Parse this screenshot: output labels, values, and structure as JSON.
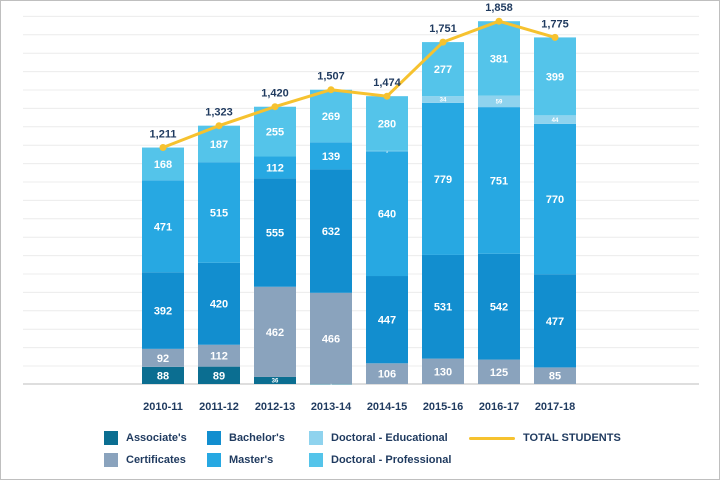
{
  "chart_data": {
    "type": "bar",
    "stacked": true,
    "categories": [
      "2010-11",
      "2011-12",
      "2012-13",
      "2013-14",
      "2014-15",
      "2015-16",
      "2016-17",
      "2017-18"
    ],
    "series": [
      {
        "name": "Associate's",
        "color": "#0b6e91",
        "values": [
          88,
          89,
          36,
          1,
          0,
          0,
          0,
          0
        ]
      },
      {
        "name": "Certificates",
        "color": "#8aa3bd",
        "values": [
          92,
          112,
          462,
          466,
          106,
          130,
          125,
          85
        ]
      },
      {
        "name": "Bachelor's",
        "color": "#128ecf",
        "values": [
          392,
          420,
          555,
          632,
          447,
          531,
          542,
          477
        ]
      },
      {
        "name": "Master's",
        "color": "#27a8e2",
        "values": [
          471,
          515,
          112,
          139,
          640,
          779,
          751,
          770
        ]
      },
      {
        "name": "Doctoral - Educational",
        "color": "#8fd3ee",
        "values": [
          0,
          0,
          0,
          0,
          1,
          34,
          59,
          44
        ]
      },
      {
        "name": "Doctoral - Professional",
        "color": "#54c4ea",
        "values": [
          168,
          187,
          255,
          269,
          280,
          277,
          381,
          399
        ]
      }
    ],
    "total_series": {
      "name": "TOTAL STUDENTS",
      "color": "#f6c22f",
      "values": [
        1211,
        1323,
        1420,
        1507,
        1474,
        1751,
        1858,
        1775
      ],
      "labels": [
        "1,211",
        "1,323",
        "1,420",
        "1,507",
        "1,474",
        "1,751",
        "1,858",
        "1,775"
      ]
    },
    "ylim": [
      0,
      1900
    ],
    "grid": true,
    "legend_position": "bottom"
  },
  "legend": {
    "associates": "Associate's",
    "certificates": "Certificates",
    "bachelors": "Bachelor's",
    "masters": "Master's",
    "doctoral_educational": "Doctoral - Educational",
    "doctoral_professional": "Doctoral - Professional",
    "total_students": "TOTAL STUDENTS"
  }
}
